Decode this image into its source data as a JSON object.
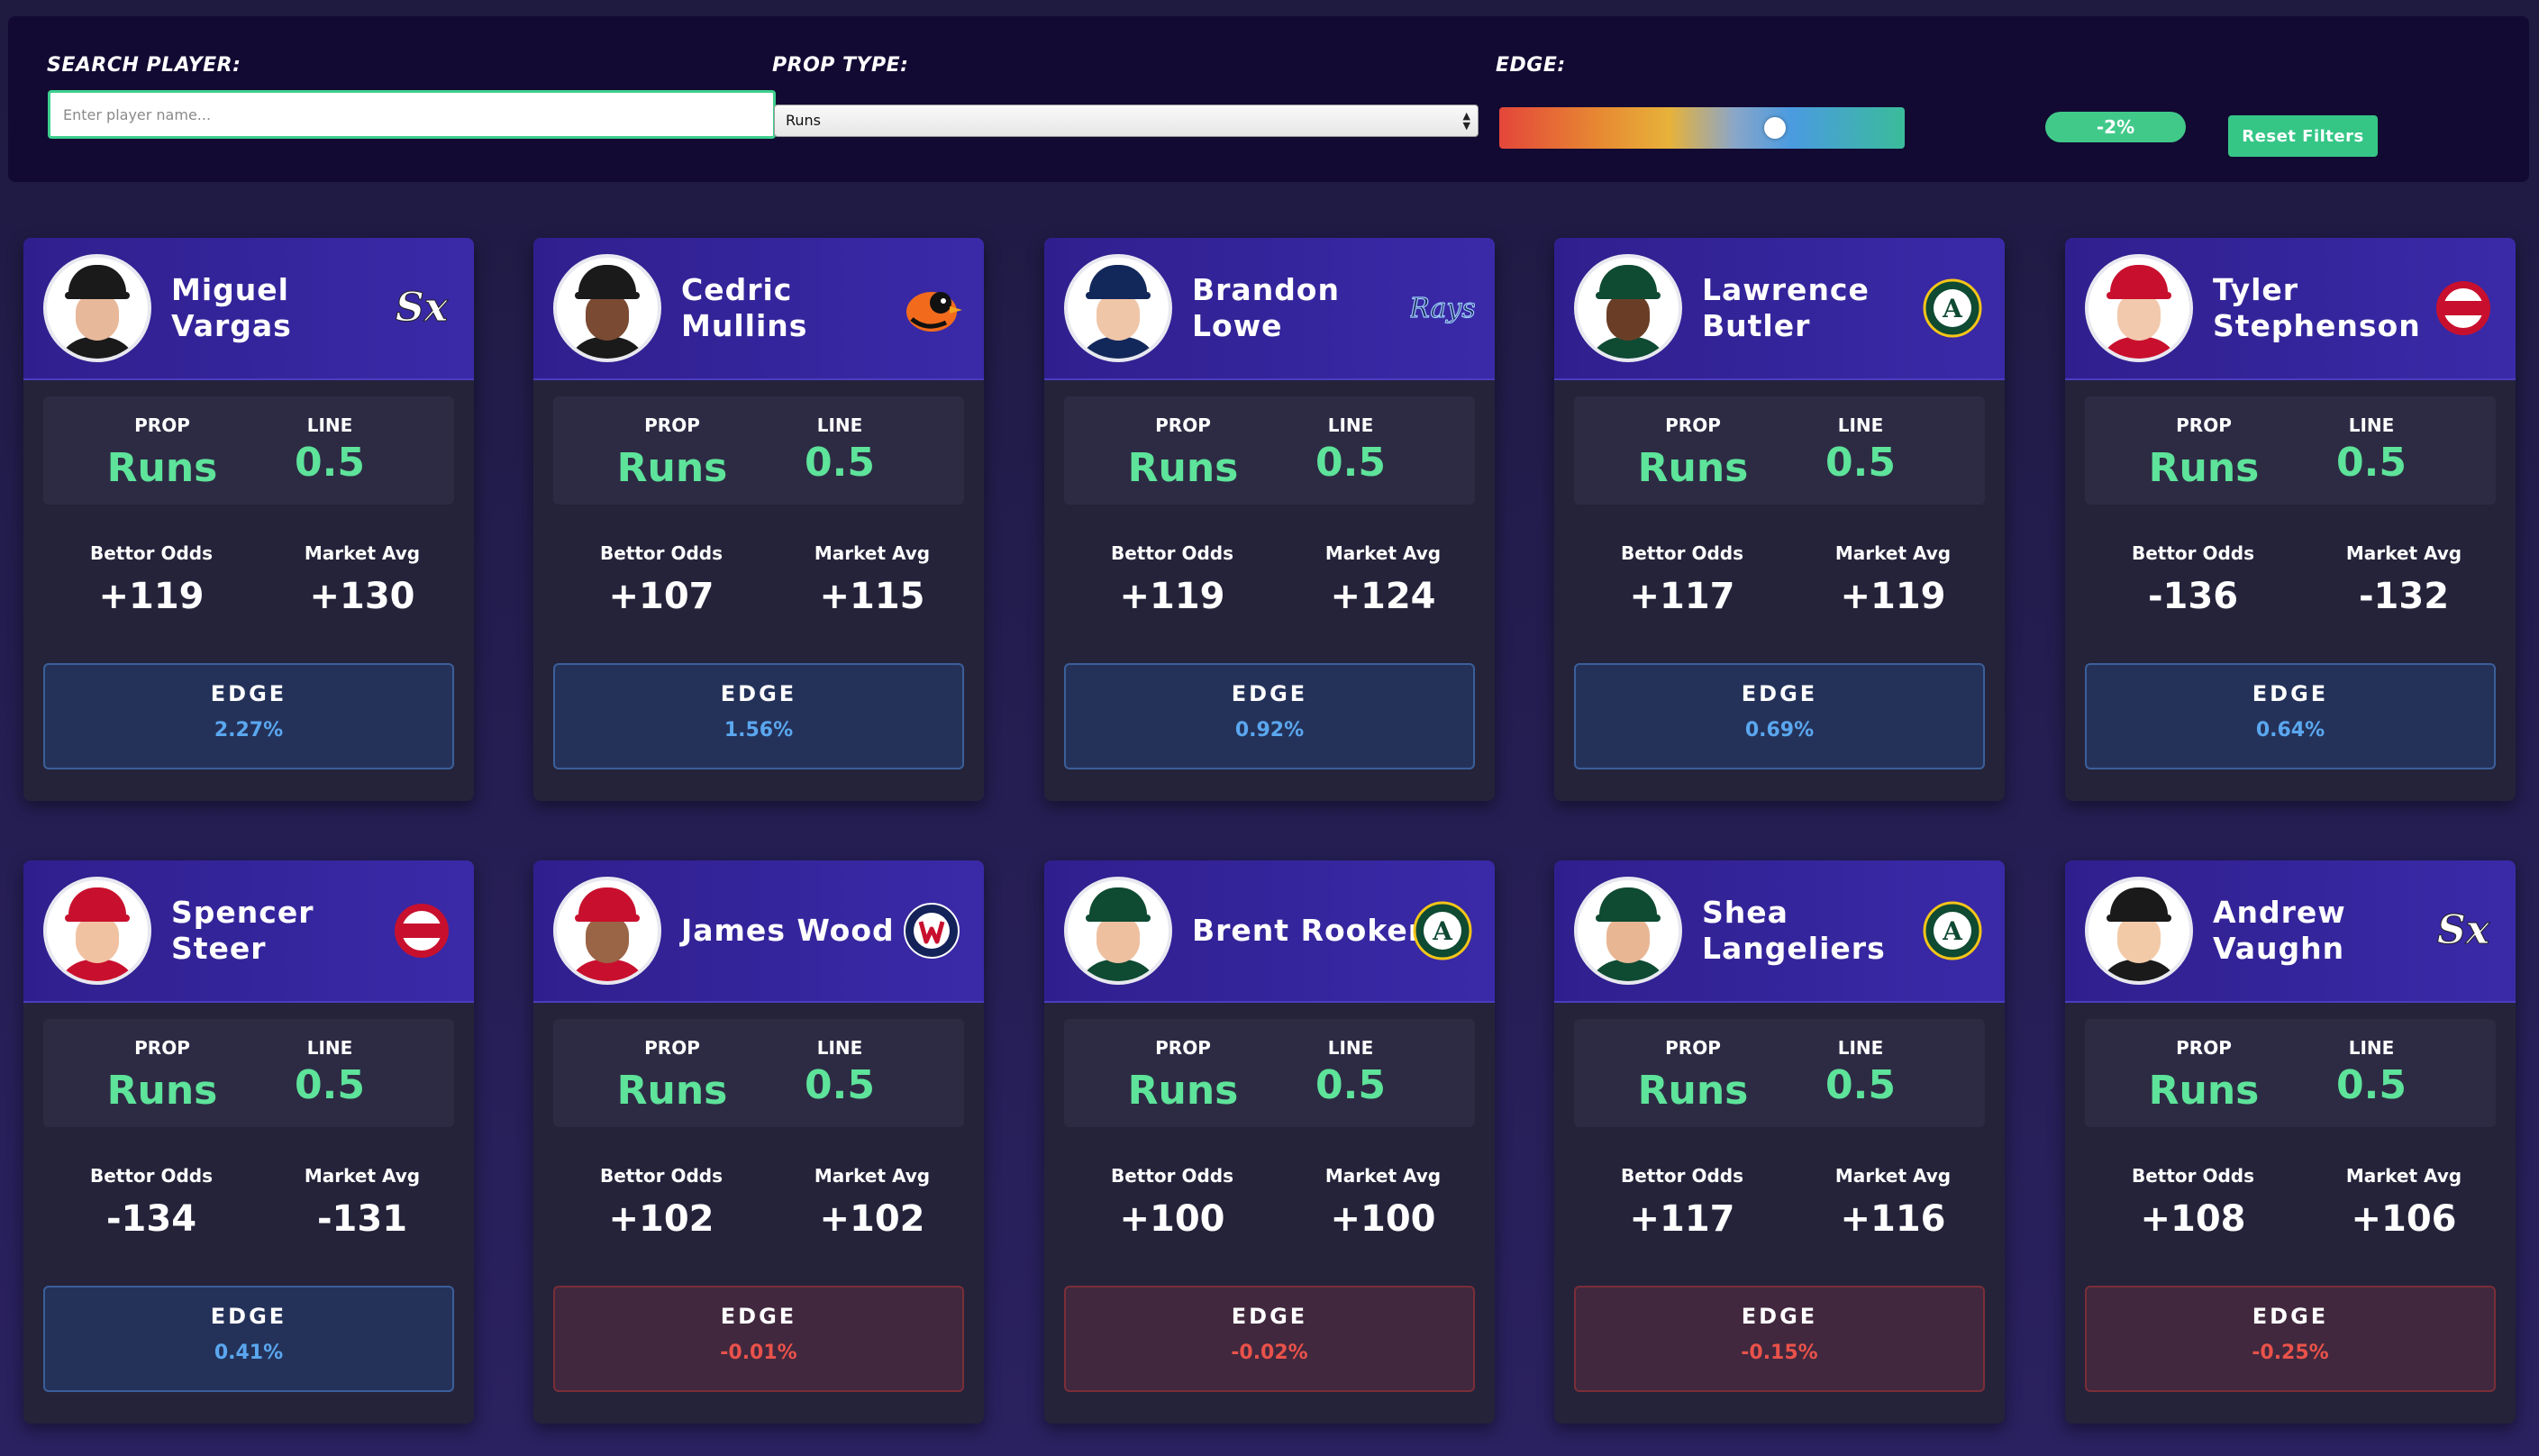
{
  "filters": {
    "search_label": "SEARCH PLAYER:",
    "search_placeholder": "Enter player name...",
    "search_value": "",
    "prop_label": "PROP TYPE:",
    "prop_selected": "Runs",
    "edge_label": "EDGE:",
    "edge_value": "-2%",
    "edge_slider_fraction": 0.69,
    "reset_label": "Reset Filters"
  },
  "labels": {
    "prop": "PROP",
    "line": "LINE",
    "bettor_odds": "Bettor Odds",
    "market_avg": "Market Avg",
    "edge": "EDGE"
  },
  "colors": {
    "header_purple": "#3a2aa8",
    "positive_edge": "#5aa7ef",
    "negative_edge": "#e9524a",
    "prop_green": "#5ee39a",
    "accent_green": "#35c686"
  },
  "cards": [
    {
      "name": "Miguel Vargas",
      "team_logo": "white-sox-logo-icon",
      "prop": "Runs",
      "line": "0.5",
      "bettor_odds": "+119",
      "market_avg": "+130",
      "edge": "2.27%",
      "edge_sign": "pos"
    },
    {
      "name": "Cedric Mullins",
      "team_logo": "orioles-logo-icon",
      "prop": "Runs",
      "line": "0.5",
      "bettor_odds": "+107",
      "market_avg": "+115",
      "edge": "1.56%",
      "edge_sign": "pos"
    },
    {
      "name": "Brandon Lowe",
      "team_logo": "rays-logo-icon",
      "prop": "Runs",
      "line": "0.5",
      "bettor_odds": "+119",
      "market_avg": "+124",
      "edge": "0.92%",
      "edge_sign": "pos"
    },
    {
      "name": "Lawrence Butler",
      "team_logo": "athletics-logo-icon",
      "prop": "Runs",
      "line": "0.5",
      "bettor_odds": "+117",
      "market_avg": "+119",
      "edge": "0.69%",
      "edge_sign": "pos"
    },
    {
      "name": "Tyler Stephenson",
      "team_logo": "reds-logo-icon",
      "prop": "Runs",
      "line": "0.5",
      "bettor_odds": "-136",
      "market_avg": "-132",
      "edge": "0.64%",
      "edge_sign": "pos"
    },
    {
      "name": "Spencer Steer",
      "team_logo": "reds-logo-icon",
      "prop": "Runs",
      "line": "0.5",
      "bettor_odds": "-134",
      "market_avg": "-131",
      "edge": "0.41%",
      "edge_sign": "pos"
    },
    {
      "name": "James Wood",
      "team_logo": "nationals-logo-icon",
      "prop": "Runs",
      "line": "0.5",
      "bettor_odds": "+102",
      "market_avg": "+102",
      "edge": "-0.01%",
      "edge_sign": "neg"
    },
    {
      "name": "Brent Rooker",
      "team_logo": "athletics-logo-icon",
      "prop": "Runs",
      "line": "0.5",
      "bettor_odds": "+100",
      "market_avg": "+100",
      "edge": "-0.02%",
      "edge_sign": "neg"
    },
    {
      "name": "Shea Langeliers",
      "team_logo": "athletics-logo-icon",
      "prop": "Runs",
      "line": "0.5",
      "bettor_odds": "+117",
      "market_avg": "+116",
      "edge": "-0.15%",
      "edge_sign": "neg"
    },
    {
      "name": "Andrew Vaughn",
      "team_logo": "white-sox-logo-icon",
      "prop": "Runs",
      "line": "0.5",
      "bettor_odds": "+108",
      "market_avg": "+106",
      "edge": "-0.25%",
      "edge_sign": "neg"
    }
  ]
}
